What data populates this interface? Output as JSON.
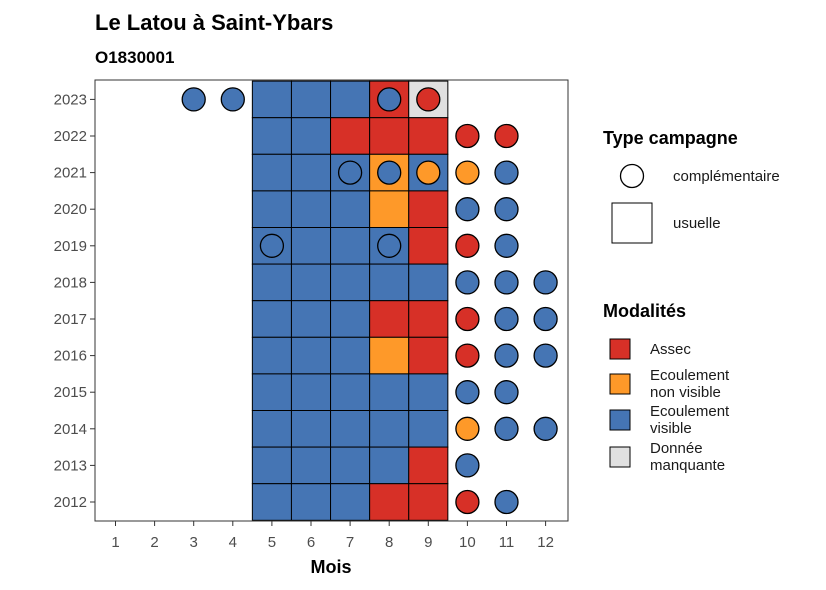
{
  "chart_data": {
    "type": "heatmap",
    "title": "Le Latou à Saint-Ybars",
    "subtitle": "O1830001",
    "xlabel": "Mois",
    "ylabel": "",
    "x": [
      1,
      2,
      3,
      4,
      5,
      6,
      7,
      8,
      9,
      10,
      11,
      12
    ],
    "y": [
      2012,
      2013,
      2014,
      2015,
      2016,
      2017,
      2018,
      2019,
      2020,
      2021,
      2022,
      2023
    ],
    "colors": {
      "Assec": "#d73027",
      "Ecoulement non visible": "#fe9929",
      "Ecoulement visible": "#4575b4",
      "Donnée manquante": "#e0e0e0"
    },
    "legend_type": {
      "title": "Type campagne",
      "items": [
        {
          "key": "complementaire",
          "label": "complémentaire",
          "shape": "circle"
        },
        {
          "key": "usuelle",
          "label": "usuelle",
          "shape": "square"
        }
      ]
    },
    "legend_mod": {
      "title": "Modalités",
      "items": [
        {
          "key": "Assec",
          "lines": [
            "Assec"
          ]
        },
        {
          "key": "Ecoulement non visible",
          "lines": [
            "Ecoulement",
            "non visible"
          ]
        },
        {
          "key": "Ecoulement visible",
          "lines": [
            "Ecoulement",
            "visible"
          ]
        },
        {
          "key": "Donnée manquante",
          "lines": [
            "Donnée",
            "manquante"
          ]
        }
      ]
    },
    "usuelle": [
      [
        2023,
        5,
        "Ecoulement visible"
      ],
      [
        2023,
        6,
        "Ecoulement visible"
      ],
      [
        2023,
        7,
        "Ecoulement visible"
      ],
      [
        2023,
        8,
        "Assec"
      ],
      [
        2023,
        9,
        "Donnée manquante"
      ],
      [
        2022,
        5,
        "Ecoulement visible"
      ],
      [
        2022,
        6,
        "Ecoulement visible"
      ],
      [
        2022,
        7,
        "Assec"
      ],
      [
        2022,
        8,
        "Assec"
      ],
      [
        2022,
        9,
        "Assec"
      ],
      [
        2021,
        5,
        "Ecoulement visible"
      ],
      [
        2021,
        6,
        "Ecoulement visible"
      ],
      [
        2021,
        7,
        "Ecoulement visible"
      ],
      [
        2021,
        8,
        "Ecoulement non visible"
      ],
      [
        2021,
        9,
        "Ecoulement visible"
      ],
      [
        2020,
        5,
        "Ecoulement visible"
      ],
      [
        2020,
        6,
        "Ecoulement visible"
      ],
      [
        2020,
        7,
        "Ecoulement visible"
      ],
      [
        2020,
        8,
        "Ecoulement non visible"
      ],
      [
        2020,
        9,
        "Assec"
      ],
      [
        2019,
        5,
        "Ecoulement visible"
      ],
      [
        2019,
        6,
        "Ecoulement visible"
      ],
      [
        2019,
        7,
        "Ecoulement visible"
      ],
      [
        2019,
        8,
        "Ecoulement visible"
      ],
      [
        2019,
        9,
        "Assec"
      ],
      [
        2018,
        5,
        "Ecoulement visible"
      ],
      [
        2018,
        6,
        "Ecoulement visible"
      ],
      [
        2018,
        7,
        "Ecoulement visible"
      ],
      [
        2018,
        8,
        "Ecoulement visible"
      ],
      [
        2018,
        9,
        "Ecoulement visible"
      ],
      [
        2017,
        5,
        "Ecoulement visible"
      ],
      [
        2017,
        6,
        "Ecoulement visible"
      ],
      [
        2017,
        7,
        "Ecoulement visible"
      ],
      [
        2017,
        8,
        "Assec"
      ],
      [
        2017,
        9,
        "Assec"
      ],
      [
        2016,
        5,
        "Ecoulement visible"
      ],
      [
        2016,
        6,
        "Ecoulement visible"
      ],
      [
        2016,
        7,
        "Ecoulement visible"
      ],
      [
        2016,
        8,
        "Ecoulement non visible"
      ],
      [
        2016,
        9,
        "Assec"
      ],
      [
        2015,
        5,
        "Ecoulement visible"
      ],
      [
        2015,
        6,
        "Ecoulement visible"
      ],
      [
        2015,
        7,
        "Ecoulement visible"
      ],
      [
        2015,
        8,
        "Ecoulement visible"
      ],
      [
        2015,
        9,
        "Ecoulement visible"
      ],
      [
        2014,
        5,
        "Ecoulement visible"
      ],
      [
        2014,
        6,
        "Ecoulement visible"
      ],
      [
        2014,
        7,
        "Ecoulement visible"
      ],
      [
        2014,
        8,
        "Ecoulement visible"
      ],
      [
        2014,
        9,
        "Ecoulement visible"
      ],
      [
        2013,
        5,
        "Ecoulement visible"
      ],
      [
        2013,
        6,
        "Ecoulement visible"
      ],
      [
        2013,
        7,
        "Ecoulement visible"
      ],
      [
        2013,
        8,
        "Ecoulement visible"
      ],
      [
        2013,
        9,
        "Assec"
      ],
      [
        2012,
        5,
        "Ecoulement visible"
      ],
      [
        2012,
        6,
        "Ecoulement visible"
      ],
      [
        2012,
        7,
        "Ecoulement visible"
      ],
      [
        2012,
        8,
        "Assec"
      ],
      [
        2012,
        9,
        "Assec"
      ]
    ],
    "complementaire": [
      [
        2023,
        3,
        "Ecoulement visible"
      ],
      [
        2023,
        4,
        "Ecoulement visible"
      ],
      [
        2023,
        8,
        "Ecoulement visible"
      ],
      [
        2023,
        9,
        "Assec"
      ],
      [
        2022,
        10,
        "Assec"
      ],
      [
        2022,
        11,
        "Assec"
      ],
      [
        2021,
        7,
        "Ecoulement visible"
      ],
      [
        2021,
        8,
        "Ecoulement visible"
      ],
      [
        2021,
        9,
        "Ecoulement non visible"
      ],
      [
        2021,
        10,
        "Ecoulement non visible"
      ],
      [
        2021,
        11,
        "Ecoulement visible"
      ],
      [
        2020,
        10,
        "Ecoulement visible"
      ],
      [
        2020,
        11,
        "Ecoulement visible"
      ],
      [
        2019,
        5,
        "Ecoulement visible"
      ],
      [
        2019,
        8,
        "Ecoulement visible"
      ],
      [
        2019,
        10,
        "Assec"
      ],
      [
        2019,
        11,
        "Ecoulement visible"
      ],
      [
        2018,
        10,
        "Ecoulement visible"
      ],
      [
        2018,
        11,
        "Ecoulement visible"
      ],
      [
        2018,
        12,
        "Ecoulement visible"
      ],
      [
        2017,
        10,
        "Assec"
      ],
      [
        2017,
        11,
        "Ecoulement visible"
      ],
      [
        2017,
        12,
        "Ecoulement visible"
      ],
      [
        2016,
        10,
        "Assec"
      ],
      [
        2016,
        11,
        "Ecoulement visible"
      ],
      [
        2016,
        12,
        "Ecoulement visible"
      ],
      [
        2015,
        10,
        "Ecoulement visible"
      ],
      [
        2015,
        11,
        "Ecoulement visible"
      ],
      [
        2014,
        10,
        "Ecoulement non visible"
      ],
      [
        2014,
        11,
        "Ecoulement visible"
      ],
      [
        2014,
        12,
        "Ecoulement visible"
      ],
      [
        2013,
        10,
        "Ecoulement visible"
      ],
      [
        2012,
        10,
        "Assec"
      ],
      [
        2012,
        11,
        "Ecoulement visible"
      ]
    ]
  }
}
